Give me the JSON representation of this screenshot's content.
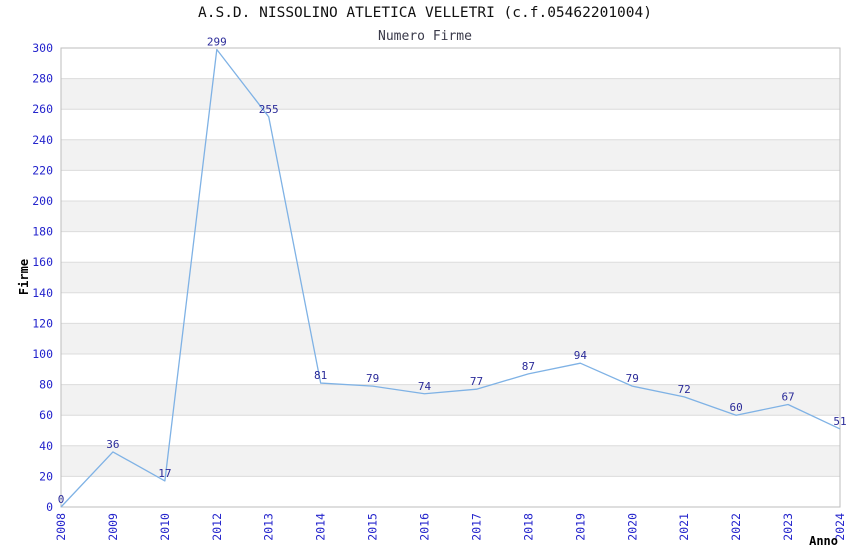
{
  "chart_data": {
    "type": "line",
    "title": "A.S.D. NISSOLINO ATLETICA VELLETRI (c.f.05462201004)",
    "subtitle": "Numero Firme",
    "xlabel": "Anno",
    "ylabel": "Firme",
    "categories": [
      "2008",
      "2009",
      "2010",
      "2012",
      "2013",
      "2014",
      "2015",
      "2016",
      "2017",
      "2018",
      "2019",
      "2020",
      "2021",
      "2022",
      "2023",
      "2024"
    ],
    "values": [
      0,
      36,
      17,
      299,
      255,
      81,
      79,
      74,
      77,
      87,
      94,
      79,
      72,
      60,
      67,
      51
    ],
    "data_labels_visible": true,
    "ylim": [
      0,
      300
    ],
    "ytick_step": 20,
    "yticks": [
      0,
      20,
      40,
      60,
      80,
      100,
      120,
      140,
      160,
      180,
      200,
      220,
      240,
      260,
      280,
      300
    ],
    "grid": "horizontal",
    "alternating_bands": true,
    "legend": "none",
    "point_markers": false,
    "x_tick_rotation_deg": -90,
    "colors": {
      "line": "#7fb2e5",
      "point_label": "#2b2b99",
      "tick_label": "#2424cc",
      "title": "#111111",
      "subtitle": "#3a3a4a",
      "axis_title": "#000000",
      "band_shaded": "#f2f2f2",
      "band_plain": "#ffffff",
      "gridline": "#dcdcdc",
      "plot_border": "#bdbdbd",
      "background": "#ffffff"
    }
  }
}
